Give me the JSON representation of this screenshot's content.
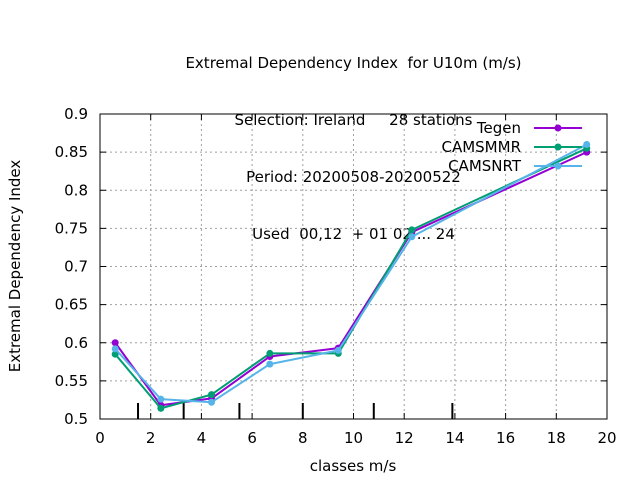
{
  "chart_data": {
    "type": "line",
    "title_lines": [
      "Extremal Dependency Index  for U10m (m/s)",
      "Selection: Ireland     28 stations",
      "Period: 20200508-20200522",
      "Used  00,12  + 01 02 ... 24"
    ],
    "xlabel": "classes m/s",
    "ylabel": "Extremal Dependency Index",
    "xlim": [
      0,
      20
    ],
    "ylim": [
      0.5,
      0.9
    ],
    "x_ticks": [
      0,
      2,
      4,
      6,
      8,
      10,
      12,
      14,
      16,
      18,
      20
    ],
    "y_ticks": [
      0.5,
      0.55,
      0.6,
      0.65,
      0.7,
      0.75,
      0.8,
      0.85,
      0.9
    ],
    "y_tick_labels": [
      "0.5",
      "0.55",
      "0.6",
      "0.65",
      "0.7",
      "0.75",
      "0.8",
      "0.85",
      "0.9"
    ],
    "grid": true,
    "legend_position": "top-right",
    "class_boundaries": [
      1.5,
      3.3,
      5.5,
      8.0,
      10.8,
      13.9
    ],
    "series": [
      {
        "name": "Tegen",
        "color": "#9400d3",
        "x": [
          0.6,
          2.4,
          4.4,
          6.7,
          9.4,
          12.3,
          19.2
        ],
        "y": [
          0.6,
          0.518,
          0.527,
          0.582,
          0.593,
          0.745,
          0.85
        ]
      },
      {
        "name": "CAMSMMR",
        "color": "#009e73",
        "x": [
          0.6,
          2.4,
          4.4,
          6.7,
          9.4,
          12.3,
          19.2
        ],
        "y": [
          0.585,
          0.514,
          0.532,
          0.586,
          0.586,
          0.748,
          0.855
        ]
      },
      {
        "name": "CAMSNRT",
        "color": "#56b4e9",
        "x": [
          0.6,
          2.4,
          4.4,
          6.7,
          9.4,
          12.3,
          19.2
        ],
        "y": [
          0.592,
          0.526,
          0.522,
          0.572,
          0.59,
          0.739,
          0.86
        ]
      }
    ]
  }
}
